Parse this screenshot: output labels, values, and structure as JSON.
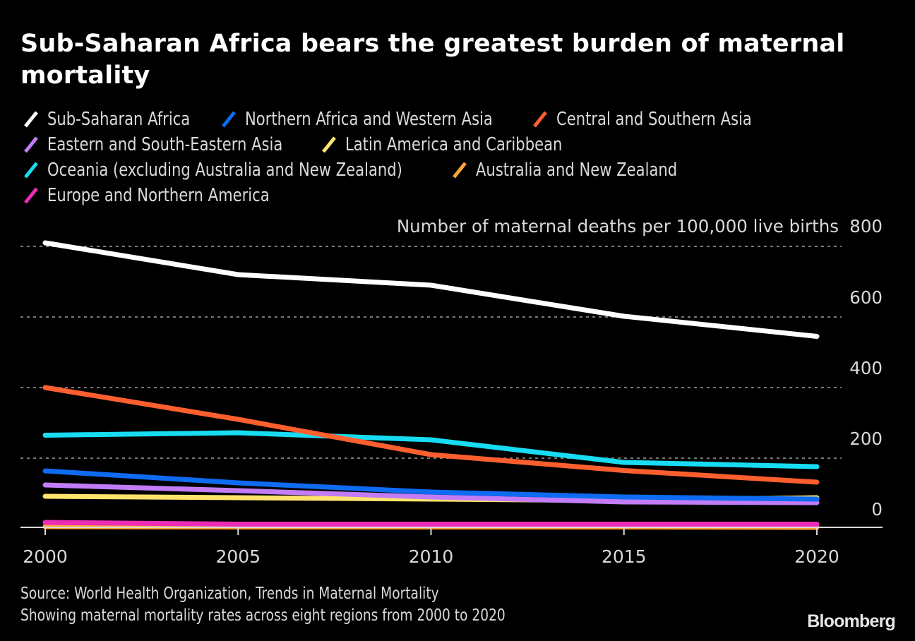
{
  "header": {
    "title": "Sub-Saharan Africa bears the greatest burden of maternal mortality"
  },
  "legend": {
    "rows": [
      [
        0,
        1,
        2
      ],
      [
        3,
        4
      ],
      [
        5,
        6
      ],
      [
        7
      ]
    ]
  },
  "footer": {
    "source": "Source: World Health Organization, Trends in Maternal Mortality",
    "note": "Showing maternal mortality rates across eight regions from 2000 to 2020",
    "brand": "Bloomberg"
  },
  "chart_data": {
    "type": "line",
    "title": "Sub-Saharan Africa bears the greatest burden of maternal mortality",
    "xlabel": "",
    "ylabel": "Number of maternal deaths per 100,000 live births",
    "x": [
      2000,
      2005,
      2010,
      2015,
      2020
    ],
    "x_tick_labels": [
      "2000",
      "2005",
      "2010",
      "2015",
      "2020"
    ],
    "y_ticks": [
      0,
      200,
      400,
      600,
      800
    ],
    "y_tick_labels": [
      "0",
      "200",
      "400",
      "600",
      "800"
    ],
    "ylim": [
      0,
      800
    ],
    "xlim": [
      2000,
      2020
    ],
    "grid": "horizontal dotted",
    "y_axis_position": "right",
    "legend_position": "top",
    "series": [
      {
        "name": "Sub-Saharan Africa",
        "color": "#ffffff",
        "values": [
          810,
          720,
          690,
          602,
          545
        ]
      },
      {
        "name": "Northern Africa and Western Asia",
        "color": "#0d6cf2",
        "values": [
          164,
          130,
          104,
          90,
          84
        ]
      },
      {
        "name": "Central and Southern Asia",
        "color": "#ff5f2e",
        "values": [
          400,
          310,
          210,
          165,
          132
        ]
      },
      {
        "name": "Eastern and South-Eastern Asia",
        "color": "#c27cf7",
        "values": [
          124,
          108,
          90,
          76,
          74
        ]
      },
      {
        "name": "Latin America and Caribbean",
        "color": "#ffe46b",
        "values": [
          92,
          88,
          84,
          80,
          88
        ]
      },
      {
        "name": "Oceania (excluding Australia and New Zealand)",
        "color": "#17dcf2",
        "values": [
          265,
          272,
          252,
          188,
          176
        ]
      },
      {
        "name": "Australia and New Zealand",
        "color": "#ffa438",
        "values": [
          6,
          5,
          5,
          5,
          4
        ]
      },
      {
        "name": "Europe and Northern America",
        "color": "#ec2cb6",
        "values": [
          18,
          13,
          13,
          13,
          13
        ]
      }
    ]
  }
}
